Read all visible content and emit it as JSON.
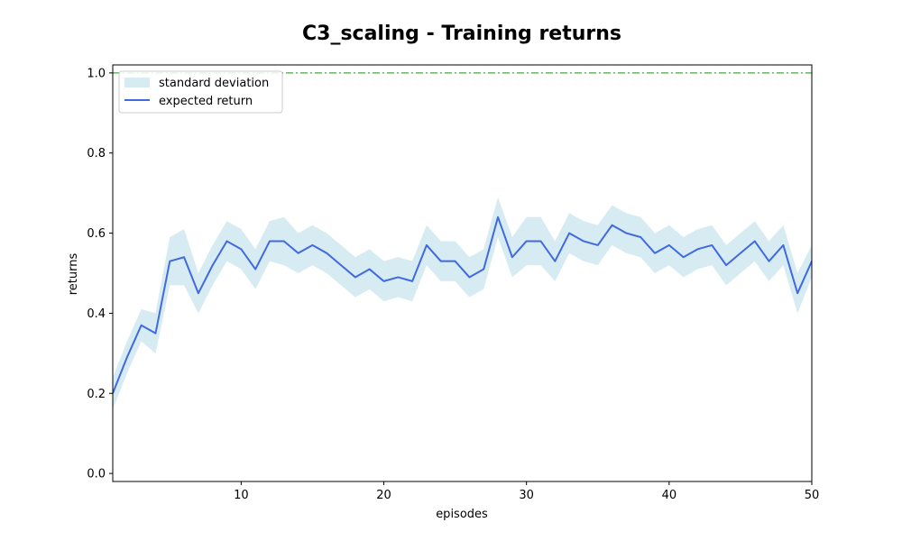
{
  "chart_data": {
    "type": "line",
    "title": "C3_scaling - Training returns",
    "xlabel": "episodes",
    "ylabel": "returns",
    "xlim": [
      1,
      50
    ],
    "ylim": [
      -0.02,
      1.02
    ],
    "xticks": [
      10,
      20,
      30,
      40,
      50
    ],
    "yticks": [
      0.0,
      0.2,
      0.4,
      0.6,
      0.8,
      1.0
    ],
    "ytick_labels": [
      "0.0",
      "0.2",
      "0.4",
      "0.6",
      "0.8",
      "1.0"
    ],
    "grid": false,
    "legend_position": "top-left",
    "x": [
      1,
      2,
      3,
      4,
      5,
      6,
      7,
      8,
      9,
      10,
      11,
      12,
      13,
      14,
      15,
      16,
      17,
      18,
      19,
      20,
      21,
      22,
      23,
      24,
      25,
      26,
      27,
      28,
      29,
      30,
      31,
      32,
      33,
      34,
      35,
      36,
      37,
      38,
      39,
      40,
      41,
      42,
      43,
      44,
      45,
      46,
      47,
      48,
      49,
      50
    ],
    "series": [
      {
        "name": "expected return",
        "color": "#4169e1",
        "values": [
          0.2,
          0.29,
          0.37,
          0.35,
          0.53,
          0.54,
          0.45,
          0.52,
          0.58,
          0.56,
          0.51,
          0.58,
          0.58,
          0.55,
          0.57,
          0.55,
          0.52,
          0.49,
          0.51,
          0.48,
          0.49,
          0.48,
          0.57,
          0.53,
          0.53,
          0.49,
          0.51,
          0.64,
          0.54,
          0.58,
          0.58,
          0.53,
          0.6,
          0.58,
          0.57,
          0.62,
          0.6,
          0.59,
          0.55,
          0.57,
          0.54,
          0.56,
          0.57,
          0.52,
          0.55,
          0.58,
          0.53,
          0.57,
          0.45,
          0.53
        ]
      },
      {
        "name": "standard deviation",
        "color": "#add8e6",
        "type": "band",
        "std": [
          0.04,
          0.04,
          0.04,
          0.05,
          0.06,
          0.07,
          0.05,
          0.05,
          0.05,
          0.05,
          0.05,
          0.05,
          0.06,
          0.05,
          0.05,
          0.05,
          0.05,
          0.05,
          0.05,
          0.05,
          0.05,
          0.05,
          0.05,
          0.05,
          0.05,
          0.05,
          0.05,
          0.05,
          0.05,
          0.06,
          0.06,
          0.05,
          0.05,
          0.05,
          0.05,
          0.05,
          0.05,
          0.05,
          0.05,
          0.05,
          0.05,
          0.05,
          0.05,
          0.05,
          0.05,
          0.05,
          0.05,
          0.05,
          0.05,
          0.04
        ]
      }
    ],
    "reference_line": {
      "y": 1.0,
      "color": "#2ca02c",
      "style": "dash-dot"
    },
    "legend": [
      "standard deviation",
      "expected return"
    ]
  }
}
